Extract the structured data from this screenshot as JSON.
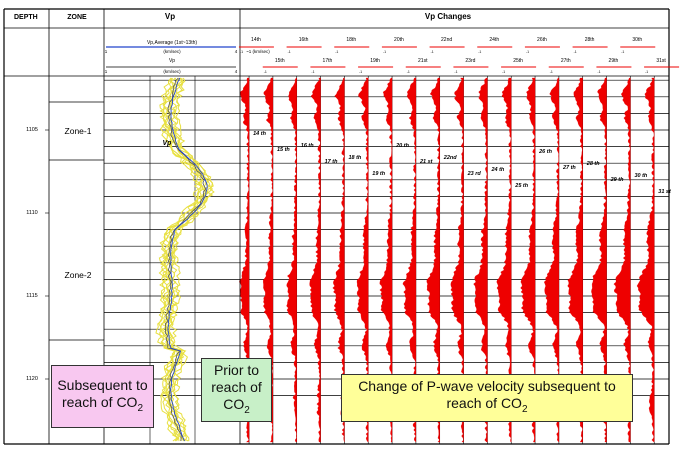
{
  "header": {
    "depth": "DEPTH",
    "zone": "ZONE",
    "vp": "Vp",
    "vp_changes": "Vp Changes"
  },
  "vp_scales": {
    "average_label": "Vp,Average (1st~13th)",
    "average_unit": "(km/sec)",
    "average_min": "1",
    "average_max": "4",
    "vp_label": "Vp",
    "vp_unit": "(km/sec)",
    "vp_min": "1",
    "vp_max": "4",
    "change_unit": "~1 (km/sec)"
  },
  "depths": [
    "1105",
    "1110",
    "1115",
    "1120"
  ],
  "zones": [
    "Zone-1",
    "Zone-2"
  ],
  "vp_curve_label": "Vp",
  "track_top": [
    "14th",
    "16th",
    "18th",
    "20th",
    "22nd",
    "24th",
    "26th",
    "28th",
    "30th"
  ],
  "track_bottom": [
    "15th",
    "17th",
    "19th",
    "21st",
    "23rd",
    "25th",
    "27th",
    "29th",
    "31st"
  ],
  "track_labels": [
    "14 th",
    "15 th",
    "16 th",
    "17 th",
    "18 th",
    "19 th",
    "20 th",
    "21 st",
    "22nd",
    "23 rd",
    "24 th",
    "25 th",
    "26 th",
    "27 th",
    "28 th",
    "29 th",
    "30 th",
    "31 st"
  ],
  "callouts": {
    "subsequent": "Subsequent to reach of CO",
    "prior": "Prior to reach of CO",
    "change": "Change of P-wave velocity subsequent to reach of CO",
    "subscript": "2"
  },
  "colors": {
    "fill": "#ee0000",
    "avg_line": "#2244cc",
    "curve_yellow": "#e8e040",
    "pink": "#f8c8f0",
    "green": "#c8f0c8",
    "yellow": "#ffff99"
  }
}
